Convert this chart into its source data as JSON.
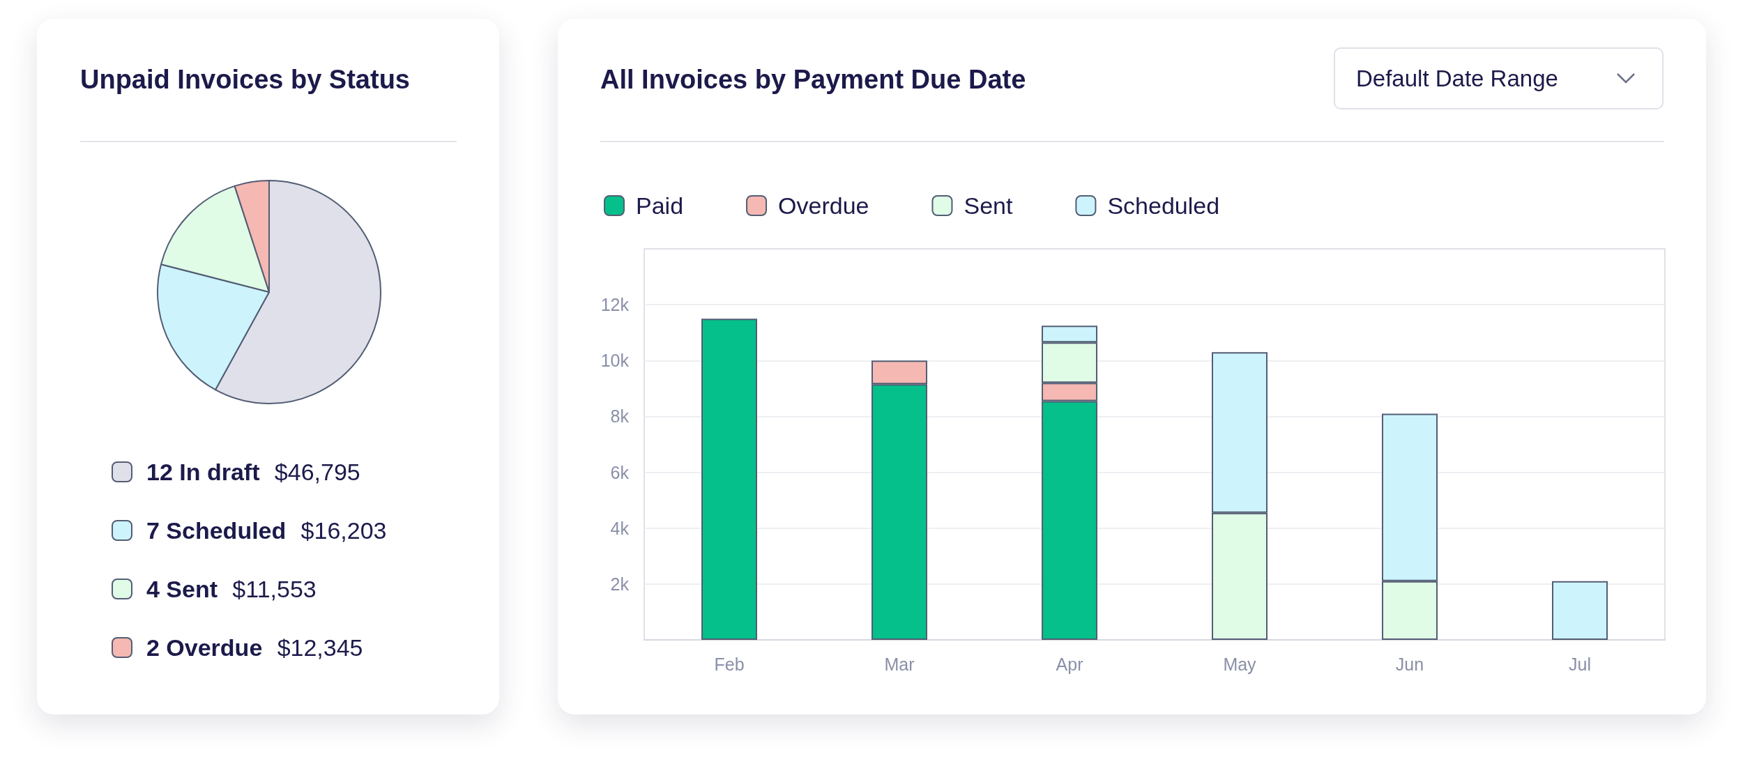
{
  "chart_data": [
    {
      "type": "pie",
      "title": "Unpaid Invoices by Status",
      "categories": [
        "12 In draft $46,795",
        "7 Scheduled $16,203",
        "4 Sent $11,553",
        "2 Overdue $12,345"
      ],
      "values": [
        58,
        21,
        16,
        5
      ],
      "colors": [
        "#e0e0ea",
        "#cdf4fc",
        "#e0fbe6",
        "#f5b8b2"
      ],
      "legend": "bottom"
    },
    {
      "type": "bar",
      "title": "All Invoices by Payment Due Date",
      "categories": [
        "Feb",
        "Mar",
        "Apr",
        "May",
        "Jun",
        "Jul"
      ],
      "stacked": true,
      "series": [
        {
          "name": "Paid",
          "color": "#05c08a",
          "values": [
            11500,
            9150,
            8550,
            null,
            null,
            null
          ]
        },
        {
          "name": "Overdue",
          "color": "#f5b8b2",
          "values": [
            null,
            850,
            650,
            null,
            null,
            null
          ]
        },
        {
          "name": "Sent",
          "color": "#e0fbe6",
          "values": [
            null,
            null,
            1450,
            4550,
            2100,
            null
          ]
        },
        {
          "name": "Scheduled",
          "color": "#cdf4fc",
          "values": [
            null,
            null,
            600,
            5750,
            6000,
            2100
          ]
        }
      ],
      "ylim": [
        0,
        14000
      ],
      "yticks": [
        {
          "value": 2000,
          "label": "2k"
        },
        {
          "value": 4000,
          "label": "4k"
        },
        {
          "value": 6000,
          "label": "6k"
        },
        {
          "value": 8000,
          "label": "8k"
        },
        {
          "value": 10000,
          "label": "10k"
        },
        {
          "value": 12000,
          "label": "12k"
        }
      ],
      "grid": "y",
      "legend": "top",
      "annotations": [
        "Default Date Range"
      ]
    }
  ]
}
